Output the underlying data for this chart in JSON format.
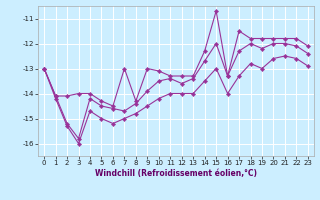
{
  "xlabel": "Windchill (Refroidissement éolien,°C)",
  "bg_color": "#cceeff",
  "grid_color": "#ffffff",
  "line_color": "#993399",
  "line1_y": [
    -13.0,
    -14.1,
    -14.1,
    -14.0,
    -14.0,
    -14.3,
    -14.5,
    -13.0,
    -14.3,
    -13.0,
    -13.1,
    -13.3,
    -13.3,
    -13.3,
    -12.3,
    -10.7,
    -13.3,
    -11.5,
    -11.8,
    -11.8,
    -11.8,
    -11.8,
    -11.8,
    -12.1
  ],
  "line2_y": [
    -13.0,
    -14.1,
    -15.2,
    -15.8,
    -14.2,
    -14.5,
    -14.6,
    -14.7,
    -14.4,
    -13.9,
    -13.5,
    -13.4,
    -13.6,
    -13.4,
    -12.7,
    -12.0,
    -13.3,
    -12.3,
    -12.0,
    -12.2,
    -12.0,
    -12.0,
    -12.1,
    -12.4
  ],
  "line3_y": [
    -13.0,
    -14.2,
    -15.3,
    -16.0,
    -14.7,
    -15.0,
    -15.2,
    -15.0,
    -14.8,
    -14.5,
    -14.2,
    -14.0,
    -14.0,
    -14.0,
    -13.5,
    -13.0,
    -14.0,
    -13.3,
    -12.8,
    -13.0,
    -12.6,
    -12.5,
    -12.6,
    -12.9
  ],
  "x": [
    0,
    1,
    2,
    3,
    4,
    5,
    6,
    7,
    8,
    9,
    10,
    11,
    12,
    13,
    14,
    15,
    16,
    17,
    18,
    19,
    20,
    21,
    22,
    23
  ],
  "xlim": [
    -0.5,
    23.5
  ],
  "ylim": [
    -16.5,
    -10.5
  ],
  "yticks": [
    -16,
    -15,
    -14,
    -13,
    -12,
    -11
  ],
  "xticks": [
    0,
    1,
    2,
    3,
    4,
    5,
    6,
    7,
    8,
    9,
    10,
    11,
    12,
    13,
    14,
    15,
    16,
    17,
    18,
    19,
    20,
    21,
    22,
    23
  ],
  "xlabel_fontsize": 5.5,
  "tick_fontsize": 5.0
}
